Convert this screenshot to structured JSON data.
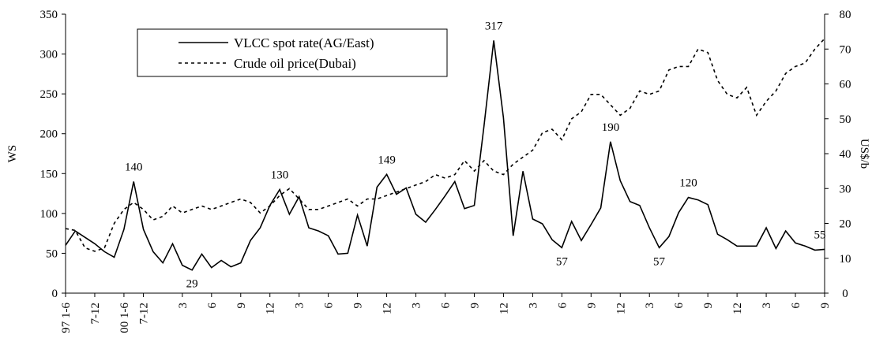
{
  "chart_data": {
    "type": "line",
    "categories": [
      "97 1-6",
      null,
      null,
      "7-12",
      null,
      null,
      "00 1-6",
      null,
      "7-12",
      null,
      null,
      null,
      "3",
      null,
      null,
      "6",
      null,
      null,
      "9",
      null,
      null,
      "12",
      null,
      null,
      "3",
      null,
      null,
      "6",
      null,
      null,
      "9",
      null,
      null,
      "12",
      null,
      null,
      "3",
      null,
      null,
      "6",
      null,
      null,
      "9",
      null,
      null,
      "12",
      null,
      null,
      "3",
      null,
      null,
      "6",
      null,
      null,
      "9",
      null,
      null,
      "12",
      null,
      null,
      "3",
      null,
      null,
      "6",
      null,
      null,
      "9",
      null,
      null,
      "12",
      null,
      null,
      "3",
      null,
      null,
      "6",
      null,
      null,
      "9"
    ],
    "series": [
      {
        "name": "VLCC spot rate(AG/East)",
        "color": "#000000",
        "line_style": "solid",
        "axis": "y",
        "values": [
          60,
          78,
          70,
          62,
          52,
          45,
          80,
          140,
          80,
          52,
          38,
          62,
          35,
          29,
          49,
          32,
          41,
          33,
          38,
          66,
          82,
          110,
          130,
          99,
          121,
          82,
          78,
          72,
          49,
          50,
          98,
          59,
          133,
          149,
          124,
          132,
          99,
          89,
          105,
          122,
          140,
          106,
          110,
          210,
          317,
          220,
          72,
          153,
          93,
          87,
          67,
          57,
          90,
          66,
          86,
          107,
          190,
          141,
          115,
          110,
          82,
          57,
          71,
          101,
          120,
          117,
          111,
          74,
          67,
          59,
          59,
          59,
          82,
          56,
          78,
          63,
          59,
          54,
          55
        ]
      },
      {
        "name": "Crude oil price(Dubai)",
        "color": "#000000",
        "line_style": "dashed",
        "axis": "y2",
        "values": [
          18.5,
          18,
          13,
          12,
          13,
          20,
          24,
          26,
          24,
          21,
          22,
          25,
          23,
          24,
          25,
          24,
          25,
          26,
          27,
          26,
          23,
          25,
          28,
          30,
          27,
          24,
          24,
          25,
          26,
          27,
          25,
          27,
          27,
          28,
          29,
          30,
          31,
          32,
          34,
          33,
          34,
          38,
          35,
          38,
          35,
          34,
          37,
          39,
          41,
          46,
          47,
          44,
          50,
          52,
          57,
          57,
          54,
          51,
          53,
          58,
          57,
          58,
          64,
          65,
          65,
          70,
          69,
          61,
          57,
          56,
          59,
          51,
          55,
          58,
          63,
          65,
          66,
          70,
          73
        ]
      }
    ],
    "ylabel": "WS",
    "y2label": "US$/b",
    "ylim": [
      0,
      350
    ],
    "yticks": [
      0,
      50,
      100,
      150,
      200,
      250,
      300,
      350
    ],
    "y2lim": [
      0,
      80
    ],
    "y2ticks": [
      0,
      10,
      20,
      30,
      40,
      50,
      60,
      70,
      80
    ],
    "grid": false,
    "legend": "upper left"
  }
}
